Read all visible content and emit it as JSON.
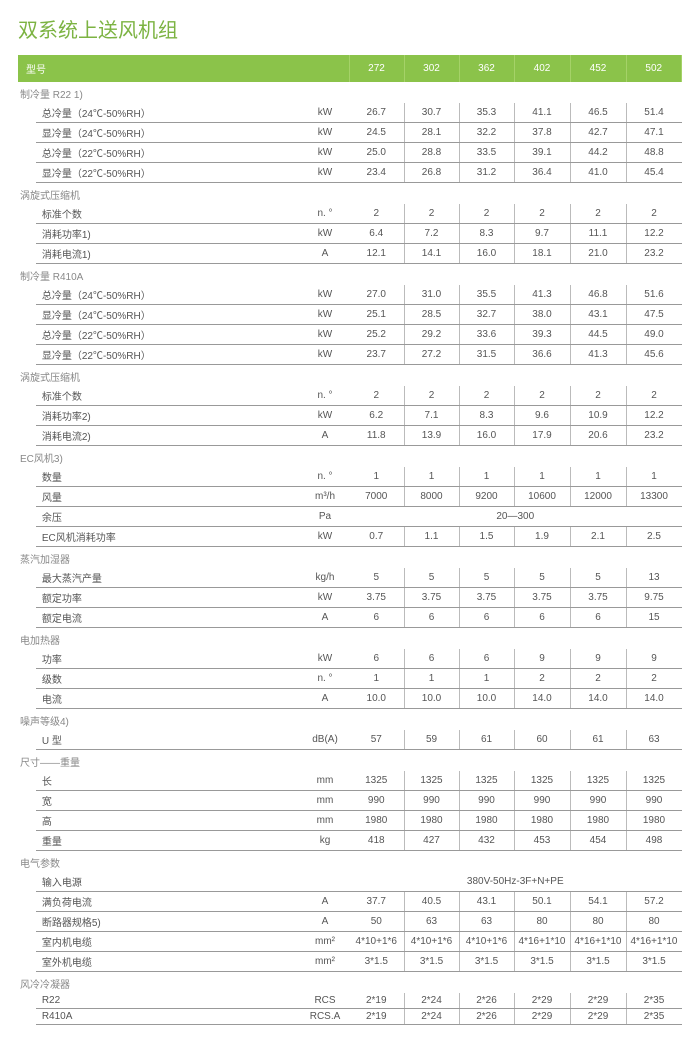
{
  "title": "双系统上送风机组",
  "header": {
    "label": "型号",
    "models": [
      "272",
      "302",
      "362",
      "402",
      "452",
      "502"
    ]
  },
  "colors": {
    "accent": "#8bc34a",
    "title": "#7cb342",
    "text": "#555",
    "border": "#999"
  },
  "sections": [
    {
      "name": "制冷量 R22 1)",
      "rows": [
        {
          "label": "总冷量（24℃-50%RH）",
          "unit": "kW",
          "vals": [
            "26.7",
            "30.7",
            "35.3",
            "41.1",
            "46.5",
            "51.4"
          ]
        },
        {
          "label": "显冷量（24℃-50%RH）",
          "unit": "kW",
          "vals": [
            "24.5",
            "28.1",
            "32.2",
            "37.8",
            "42.7",
            "47.1"
          ]
        },
        {
          "label": "总冷量（22℃-50%RH）",
          "unit": "kW",
          "vals": [
            "25.0",
            "28.8",
            "33.5",
            "39.1",
            "44.2",
            "48.8"
          ]
        },
        {
          "label": "显冷量（22℃-50%RH）",
          "unit": "kW",
          "vals": [
            "23.4",
            "26.8",
            "31.2",
            "36.4",
            "41.0",
            "45.4"
          ]
        }
      ]
    },
    {
      "name": "涡旋式压缩机",
      "rows": [
        {
          "label": "标准个数",
          "unit": "n. °",
          "vals": [
            "2",
            "2",
            "2",
            "2",
            "2",
            "2"
          ]
        },
        {
          "label": "消耗功率1)",
          "unit": "kW",
          "vals": [
            "6.4",
            "7.2",
            "8.3",
            "9.7",
            "11.1",
            "12.2"
          ]
        },
        {
          "label": "消耗电流1)",
          "unit": "A",
          "vals": [
            "12.1",
            "14.1",
            "16.0",
            "18.1",
            "21.0",
            "23.2"
          ]
        }
      ]
    },
    {
      "name": "制冷量 R410A",
      "rows": [
        {
          "label": "总冷量（24℃-50%RH）",
          "unit": "kW",
          "vals": [
            "27.0",
            "31.0",
            "35.5",
            "41.3",
            "46.8",
            "51.6"
          ]
        },
        {
          "label": "显冷量（24℃-50%RH）",
          "unit": "kW",
          "vals": [
            "25.1",
            "28.5",
            "32.7",
            "38.0",
            "43.1",
            "47.5"
          ]
        },
        {
          "label": "总冷量（22℃-50%RH）",
          "unit": "kW",
          "vals": [
            "25.2",
            "29.2",
            "33.6",
            "39.3",
            "44.5",
            "49.0"
          ]
        },
        {
          "label": "显冷量（22℃-50%RH）",
          "unit": "kW",
          "vals": [
            "23.7",
            "27.2",
            "31.5",
            "36.6",
            "41.3",
            "45.6"
          ]
        }
      ]
    },
    {
      "name": "涡旋式压缩机",
      "rows": [
        {
          "label": "标准个数",
          "unit": "n. °",
          "vals": [
            "2",
            "2",
            "2",
            "2",
            "2",
            "2"
          ]
        },
        {
          "label": "消耗功率2)",
          "unit": "kW",
          "vals": [
            "6.2",
            "7.1",
            "8.3",
            "9.6",
            "10.9",
            "12.2"
          ]
        },
        {
          "label": "消耗电流2)",
          "unit": "A",
          "vals": [
            "11.8",
            "13.9",
            "16.0",
            "17.9",
            "20.6",
            "23.2"
          ]
        }
      ]
    },
    {
      "name": "EC风机3)",
      "rows": [
        {
          "label": "数量",
          "unit": "n. °",
          "vals": [
            "1",
            "1",
            "1",
            "1",
            "1",
            "1"
          ]
        },
        {
          "label": "风量",
          "unit": "m³/h",
          "vals": [
            "7000",
            "8000",
            "9200",
            "10600",
            "12000",
            "13300"
          ]
        },
        {
          "label": "余压",
          "unit": "Pa",
          "span": "20—300"
        },
        {
          "label": "EC风机消耗功率",
          "unit": "kW",
          "vals": [
            "0.7",
            "1.1",
            "1.5",
            "1.9",
            "2.1",
            "2.5"
          ]
        }
      ]
    },
    {
      "name": "蒸汽加湿器",
      "rows": [
        {
          "label": "最大蒸汽产量",
          "unit": "kg/h",
          "vals": [
            "5",
            "5",
            "5",
            "5",
            "5",
            "13"
          ]
        },
        {
          "label": "额定功率",
          "unit": "kW",
          "vals": [
            "3.75",
            "3.75",
            "3.75",
            "3.75",
            "3.75",
            "9.75"
          ]
        },
        {
          "label": "额定电流",
          "unit": "A",
          "vals": [
            "6",
            "6",
            "6",
            "6",
            "6",
            "15"
          ]
        }
      ]
    },
    {
      "name": "电加热器",
      "rows": [
        {
          "label": "功率",
          "unit": "kW",
          "vals": [
            "6",
            "6",
            "6",
            "9",
            "9",
            "9"
          ]
        },
        {
          "label": "级数",
          "unit": "n. °",
          "vals": [
            "1",
            "1",
            "1",
            "2",
            "2",
            "2"
          ]
        },
        {
          "label": "电流",
          "unit": "A",
          "vals": [
            "10.0",
            "10.0",
            "10.0",
            "14.0",
            "14.0",
            "14.0"
          ]
        }
      ]
    },
    {
      "name": "噪声等级4)",
      "rows": [
        {
          "label": "U 型",
          "unit": "dB(A)",
          "vals": [
            "57",
            "59",
            "61",
            "60",
            "61",
            "63"
          ]
        }
      ]
    },
    {
      "name": "尺寸——重量",
      "rows": [
        {
          "label": "长",
          "unit": "mm",
          "vals": [
            "1325",
            "1325",
            "1325",
            "1325",
            "1325",
            "1325"
          ]
        },
        {
          "label": "宽",
          "unit": "mm",
          "vals": [
            "990",
            "990",
            "990",
            "990",
            "990",
            "990"
          ]
        },
        {
          "label": "高",
          "unit": "mm",
          "vals": [
            "1980",
            "1980",
            "1980",
            "1980",
            "1980",
            "1980"
          ]
        },
        {
          "label": "重量",
          "unit": "kg",
          "vals": [
            "418",
            "427",
            "432",
            "453",
            "454",
            "498"
          ]
        }
      ]
    },
    {
      "name": "电气参数",
      "rows": [
        {
          "label": "输入电源",
          "unit": "",
          "span": "380V-50Hz-3F+N+PE"
        },
        {
          "label": "满负荷电流",
          "unit": "A",
          "vals": [
            "37.7",
            "40.5",
            "43.1",
            "50.1",
            "54.1",
            "57.2"
          ]
        },
        {
          "label": "断路器规格5)",
          "unit": "A",
          "vals": [
            "50",
            "63",
            "63",
            "80",
            "80",
            "80"
          ]
        },
        {
          "label": "室内机电缆",
          "unit": "mm²",
          "vals": [
            "4*10+1*6",
            "4*10+1*6",
            "4*10+1*6",
            "4*16+1*10",
            "4*16+1*10",
            "4*16+1*10"
          ]
        },
        {
          "label": "室外机电缆",
          "unit": "mm²",
          "vals": [
            "3*1.5",
            "3*1.5",
            "3*1.5",
            "3*1.5",
            "3*1.5",
            "3*1.5"
          ]
        }
      ]
    },
    {
      "name": "风冷冷凝器",
      "rows": [
        {
          "label": "R22",
          "unit": "RCS",
          "vals": [
            "2*19",
            "2*24",
            "2*26",
            "2*29",
            "2*29",
            "2*35"
          ]
        },
        {
          "label": "R410A",
          "unit": "RCS.A",
          "vals": [
            "2*19",
            "2*24",
            "2*26",
            "2*29",
            "2*29",
            "2*35"
          ]
        }
      ]
    }
  ]
}
